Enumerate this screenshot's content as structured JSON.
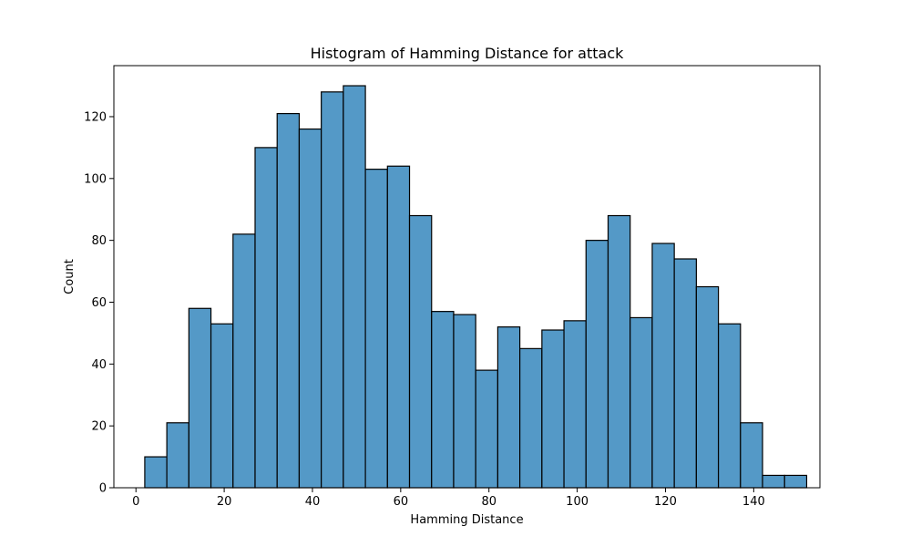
{
  "chart_data": {
    "type": "bar",
    "title": "Histogram of Hamming Distance for attack",
    "xlabel": "Hamming Distance",
    "ylabel": "Count",
    "xlim": [
      -5,
      155
    ],
    "ylim": [
      0,
      136.5
    ],
    "xticks": [
      0,
      20,
      40,
      60,
      80,
      100,
      120,
      140
    ],
    "yticks": [
      0,
      20,
      40,
      60,
      80,
      100,
      120
    ],
    "grid": false,
    "bar_color": "#5499c7",
    "edge_color": "#000000",
    "bins": [
      {
        "x0": 2.0,
        "x1": 7.0,
        "count": 10
      },
      {
        "x0": 7.0,
        "x1": 12.0,
        "count": 21
      },
      {
        "x0": 12.0,
        "x1": 17.0,
        "count": 58
      },
      {
        "x0": 17.0,
        "x1": 22.0,
        "count": 53
      },
      {
        "x0": 22.0,
        "x1": 27.0,
        "count": 82
      },
      {
        "x0": 27.0,
        "x1": 32.0,
        "count": 110
      },
      {
        "x0": 32.0,
        "x1": 37.0,
        "count": 121
      },
      {
        "x0": 37.0,
        "x1": 42.0,
        "count": 116
      },
      {
        "x0": 42.0,
        "x1": 47.0,
        "count": 128
      },
      {
        "x0": 47.0,
        "x1": 52.0,
        "count": 130
      },
      {
        "x0": 52.0,
        "x1": 57.0,
        "count": 103
      },
      {
        "x0": 57.0,
        "x1": 62.0,
        "count": 104
      },
      {
        "x0": 62.0,
        "x1": 67.0,
        "count": 88
      },
      {
        "x0": 67.0,
        "x1": 72.0,
        "count": 57
      },
      {
        "x0": 72.0,
        "x1": 77.0,
        "count": 56
      },
      {
        "x0": 77.0,
        "x1": 82.0,
        "count": 38
      },
      {
        "x0": 82.0,
        "x1": 87.0,
        "count": 52
      },
      {
        "x0": 87.0,
        "x1": 92.0,
        "count": 45
      },
      {
        "x0": 92.0,
        "x1": 97.0,
        "count": 51
      },
      {
        "x0": 97.0,
        "x1": 102.0,
        "count": 54
      },
      {
        "x0": 102.0,
        "x1": 107.0,
        "count": 80
      },
      {
        "x0": 107.0,
        "x1": 112.0,
        "count": 88
      },
      {
        "x0": 112.0,
        "x1": 117.0,
        "count": 55
      },
      {
        "x0": 117.0,
        "x1": 122.0,
        "count": 79
      },
      {
        "x0": 122.0,
        "x1": 127.0,
        "count": 74
      },
      {
        "x0": 127.0,
        "x1": 132.0,
        "count": 65
      },
      {
        "x0": 132.0,
        "x1": 137.0,
        "count": 53
      },
      {
        "x0": 137.0,
        "x1": 142.0,
        "count": 21
      },
      {
        "x0": 142.0,
        "x1": 147.0,
        "count": 4
      },
      {
        "x0": 147.0,
        "x1": 152.0,
        "count": 4
      }
    ]
  }
}
